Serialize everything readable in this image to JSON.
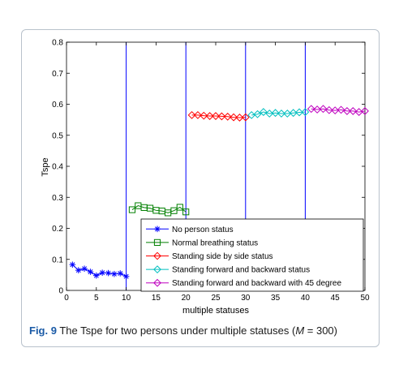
{
  "caption": {
    "label": "Fig. 9",
    "text_before": "The Tspe for two persons under multiple statuses (",
    "symbol": "M",
    "text_after": " = 300)"
  },
  "chart_data": {
    "type": "line",
    "title": "",
    "xlabel": "multiple statuses",
    "ylabel": "Tspe",
    "xlim": [
      0,
      50
    ],
    "ylim": [
      0,
      0.8
    ],
    "xticks": [
      "0",
      "5",
      "10",
      "15",
      "20",
      "25",
      "30",
      "35",
      "40",
      "45",
      "50"
    ],
    "yticks": [
      "0",
      "0.1",
      "0.2",
      "0.3",
      "0.4",
      "0.5",
      "0.6",
      "0.7",
      "0.8"
    ],
    "grid": false,
    "legend_position": "bottom-right",
    "vlines": [
      10,
      20,
      30,
      40
    ],
    "series": [
      {
        "name": "No person status",
        "color": "#0000ff",
        "marker": "star",
        "x": [
          1,
          2,
          3,
          4,
          5,
          6,
          7,
          8,
          9,
          10
        ],
        "y": [
          0.083,
          0.065,
          0.07,
          0.06,
          0.048,
          0.057,
          0.056,
          0.053,
          0.055,
          0.045
        ]
      },
      {
        "name": "Normal breathing status",
        "color": "#007f00",
        "marker": "square",
        "x": [
          11,
          12,
          13,
          14,
          15,
          16,
          17,
          18,
          19,
          20
        ],
        "y": [
          0.26,
          0.273,
          0.267,
          0.265,
          0.258,
          0.256,
          0.25,
          0.257,
          0.268,
          0.253
        ]
      },
      {
        "name": "Standing side by side status",
        "color": "#ff0000",
        "marker": "diamond",
        "x": [
          21,
          22,
          23,
          24,
          25,
          26,
          27,
          28,
          29,
          30
        ],
        "y": [
          0.565,
          0.565,
          0.563,
          0.562,
          0.562,
          0.561,
          0.56,
          0.558,
          0.557,
          0.558
        ]
      },
      {
        "name": "Standing forward and backward status",
        "color": "#00bfbf",
        "marker": "diamond",
        "x": [
          31,
          32,
          33,
          34,
          35,
          36,
          37,
          38,
          39,
          40
        ],
        "y": [
          0.565,
          0.568,
          0.575,
          0.57,
          0.572,
          0.57,
          0.57,
          0.572,
          0.574,
          0.575
        ]
      },
      {
        "name": "Standing forward and backward with 45 degree",
        "color": "#bf00bf",
        "marker": "diamond",
        "x": [
          41,
          42,
          43,
          44,
          45,
          46,
          47,
          48,
          49,
          50
        ],
        "y": [
          0.585,
          0.583,
          0.585,
          0.581,
          0.58,
          0.582,
          0.578,
          0.578,
          0.575,
          0.578
        ]
      }
    ]
  }
}
